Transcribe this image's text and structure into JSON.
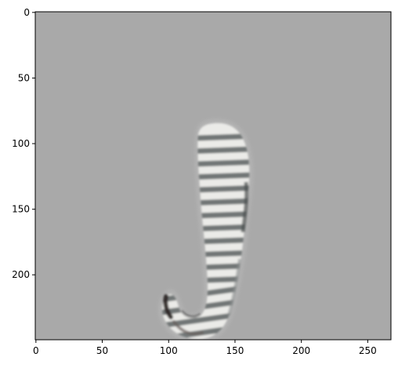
{
  "chart_data": {
    "type": "image",
    "title": "",
    "xlabel": "",
    "ylabel": "",
    "image_width": 268,
    "image_height": 250,
    "xlim": [
      -0.5,
      267.5
    ],
    "ylim": [
      249.5,
      -0.5
    ],
    "x_ticks": [
      "0",
      "50",
      "100",
      "150",
      "200",
      "250"
    ],
    "y_ticks": [
      "0",
      "50",
      "100",
      "150",
      "200"
    ],
    "background_color": "#a9a9a9",
    "grid": false,
    "subject": "striped-curled-object"
  }
}
